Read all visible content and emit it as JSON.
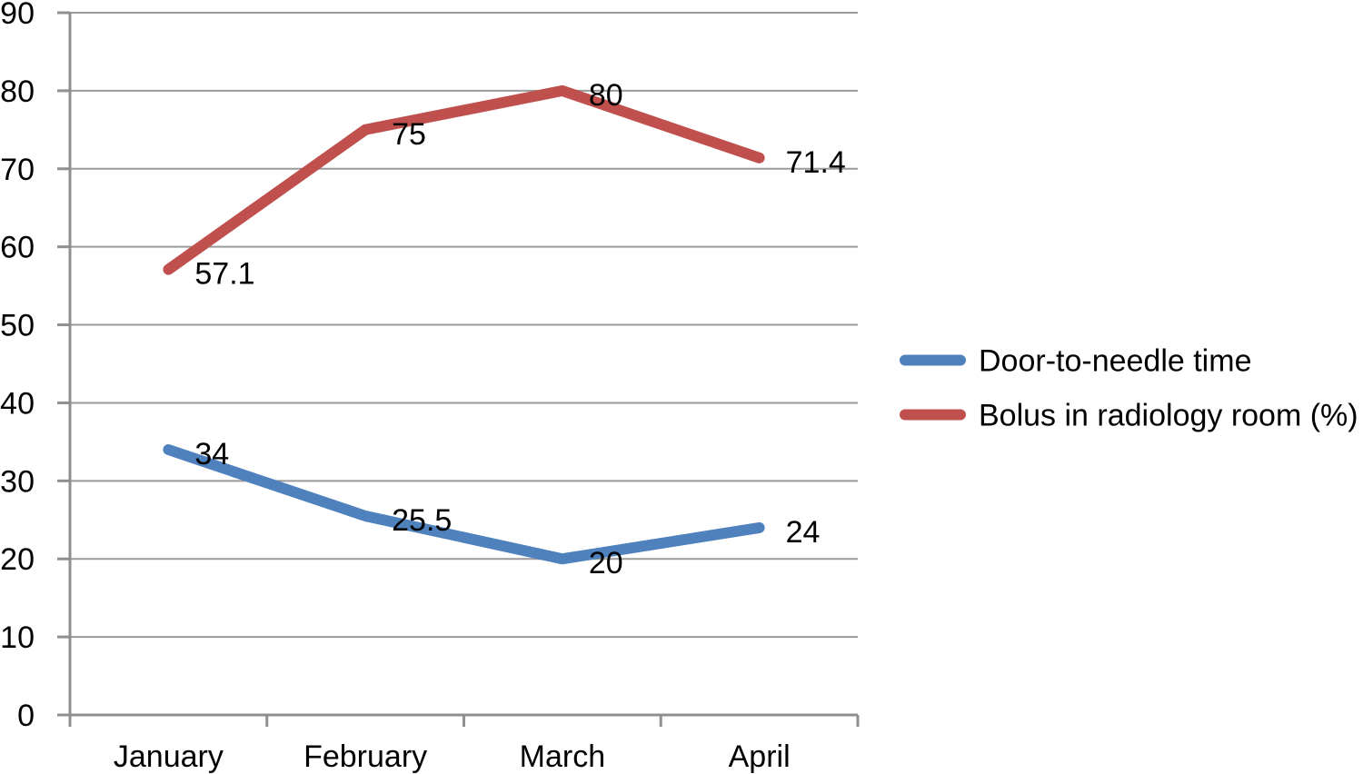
{
  "chart_data": {
    "type": "line",
    "categories": [
      "January",
      "February",
      "March",
      "April"
    ],
    "series": [
      {
        "name": "Door-to-needle time",
        "color": "#4F81BD",
        "values": [
          34,
          25.5,
          20,
          24
        ],
        "point_labels": [
          "34",
          "25.5",
          "20",
          "24"
        ]
      },
      {
        "name": "Bolus in radiology room (%)",
        "color": "#C0504D",
        "values": [
          57.1,
          75,
          80,
          71.4
        ],
        "point_labels": [
          "57.1",
          "75",
          "80",
          "71.4"
        ]
      }
    ],
    "title": "",
    "xlabel": "",
    "ylabel": "",
    "ylim": [
      0,
      90
    ],
    "ytick_step": 10,
    "ytick_labels": [
      "0",
      "10",
      "20",
      "30",
      "40",
      "50",
      "60",
      "70",
      "80",
      "90"
    ],
    "grid": true,
    "legend_position": "right",
    "gridline_color": "#9a9a9a",
    "axis_color": "#8f8f8f",
    "label_color": "#000000",
    "background": "#ffffff"
  }
}
